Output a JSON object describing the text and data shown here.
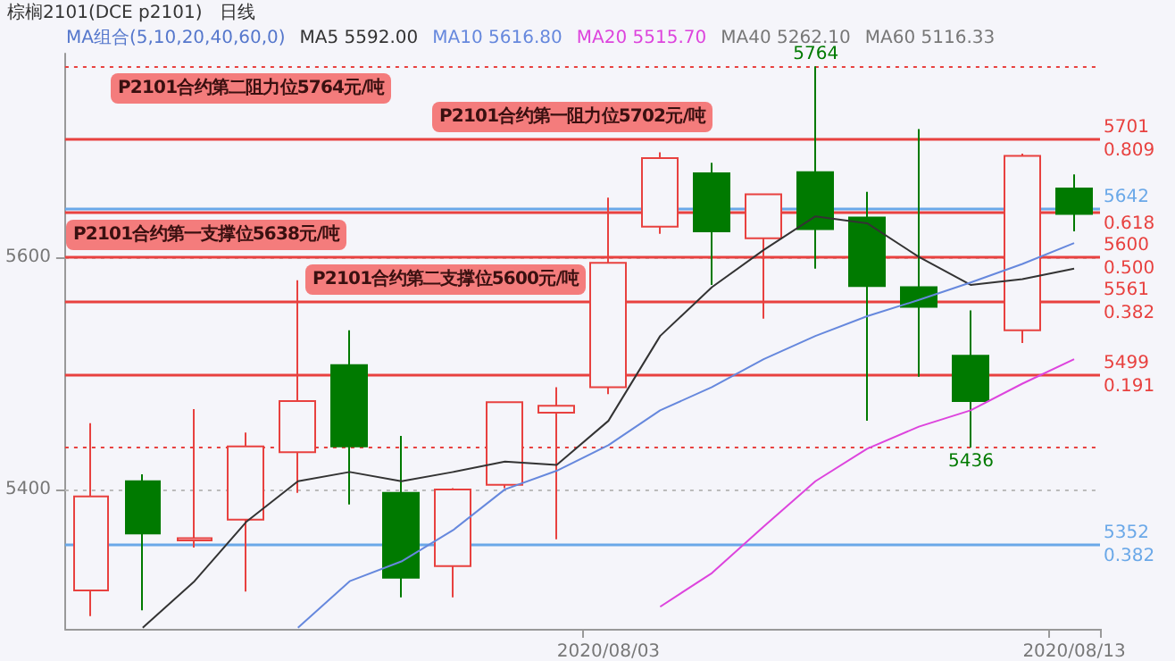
{
  "chart_data": {
    "type": "candlestick",
    "title": "棕榈2101(DCE p2101)",
    "subtitle": "日线",
    "legend_title": "MA组合(5,10,20,40,60,0)",
    "categories": [
      null,
      null,
      null,
      null,
      null,
      null,
      null,
      null,
      null,
      null,
      "2020/08/03",
      null,
      null,
      null,
      null,
      null,
      null,
      null,
      null,
      "2020/08/13"
    ],
    "ylim": [
      5280,
      5775
    ],
    "yticks": [
      5400,
      5600
    ],
    "grid": "y",
    "legend": "top",
    "marker": "none",
    "series": [
      {
        "type": "candlestick",
        "colors": [
          "#e8413f",
          "#007a00",
          "#e8413f",
          "#e8413f",
          "#e8413f",
          "#007a00",
          "#007a00",
          "#e8413f",
          "#e8413f",
          "#e8413f",
          "#e8413f",
          "#e8413f",
          "#007a00",
          "#e8413f",
          "#007a00",
          "#007a00",
          "#007a00",
          "#007a00",
          "#e8413f",
          "#007a00"
        ],
        "ohlc": [
          [
            5313,
            5457,
            5291,
            5394
          ],
          [
            5407,
            5413,
            5296,
            5362
          ],
          [
            5356,
            5469,
            5350,
            5358
          ],
          [
            5374,
            5449,
            5312,
            5437
          ],
          [
            5432,
            5580,
            5397,
            5476
          ],
          [
            5507,
            5537,
            5387,
            5437
          ],
          [
            5397,
            5446,
            5307,
            5324
          ],
          [
            5334,
            5401,
            5307,
            5400
          ],
          [
            5404,
            5475,
            5401,
            5475
          ],
          [
            5466,
            5488,
            5357,
            5472
          ],
          [
            5488,
            5651,
            5482,
            5595
          ],
          [
            5626,
            5690,
            5620,
            5685
          ],
          [
            5672,
            5681,
            5576,
            5622
          ],
          [
            5616,
            5654,
            5547,
            5654
          ],
          [
            5673,
            5764,
            5590,
            5624
          ],
          [
            5634,
            5656,
            5459,
            5575
          ],
          [
            5574,
            5710,
            5497,
            5557
          ],
          [
            5515,
            5554,
            5436,
            5476
          ],
          [
            5537,
            5689,
            5526,
            5687
          ],
          [
            5659,
            5671,
            5622,
            5637
          ]
        ]
      },
      {
        "type": "line",
        "name": "MA5 5592.00",
        "color": "#333333",
        "values": [
          null,
          5281,
          5321,
          5372,
          5407,
          5415,
          5407,
          5415,
          5424,
          5421,
          5459,
          5532,
          5574,
          5606,
          5635,
          5629,
          5600,
          5576,
          5581,
          5590
        ]
      },
      {
        "type": "line",
        "name": "MA10 5616.80",
        "color": "#6688dd",
        "values": [
          null,
          null,
          null,
          null,
          5281,
          5321,
          5338,
          5365,
          5400,
          5416,
          5438,
          5468,
          5488,
          5512,
          5532,
          5549,
          5563,
          5578,
          5594,
          5612
        ]
      },
      {
        "type": "line",
        "name": "MA20 5515.70",
        "color": "#dd44dd",
        "values": [
          null,
          null,
          null,
          null,
          null,
          null,
          null,
          null,
          null,
          null,
          null,
          5299,
          5328,
          5368,
          5407,
          5435,
          5454,
          5468,
          5491,
          5512
        ]
      }
    ],
    "ref_lines": [
      {
        "axis": "y",
        "value": 5764,
        "color": "#e8413f",
        "line_style": "dotted"
      },
      {
        "axis": "y",
        "value": 5701,
        "label": "5701",
        "color": "#e8413f",
        "line_style": "solid"
      },
      {
        "axis": "y",
        "value": 5642,
        "label": "5642",
        "color": "#6aa8e8",
        "line_style": "solid"
      },
      {
        "axis": "y",
        "value": 5638,
        "color": "#e8413f",
        "line_style": "solid"
      },
      {
        "axis": "y",
        "value": 5600,
        "label": "5600",
        "color": "#e8413f",
        "line_style": "solid"
      },
      {
        "axis": "y",
        "value": 5561,
        "label": "5561",
        "color": "#e8413f",
        "line_style": "solid"
      },
      {
        "axis": "y",
        "value": 5499,
        "label": "5499",
        "color": "#e8413f",
        "line_style": "solid"
      },
      {
        "axis": "y",
        "value": 5436,
        "color": "#e8413f",
        "line_style": "dotted"
      },
      {
        "axis": "y",
        "value": 5352,
        "label": "5352",
        "color": "#6aa8e8",
        "line_style": "solid"
      }
    ],
    "annotations": [
      "MA40 5262.10",
      "MA60 5116.33",
      "P2101合约第二阻力位5764元/吨",
      "P2101合约第一阻力位5702元/吨",
      "P2101合约第一支撑位5638元/吨",
      "P2101合约第二支撑位5600元/吨",
      "0.809",
      "0.618",
      "0.500",
      "0.382",
      "0.191",
      "0.382",
      {
        "text": "5764",
        "y": 5764
      },
      {
        "text": "5436",
        "y": 5436
      }
    ]
  }
}
